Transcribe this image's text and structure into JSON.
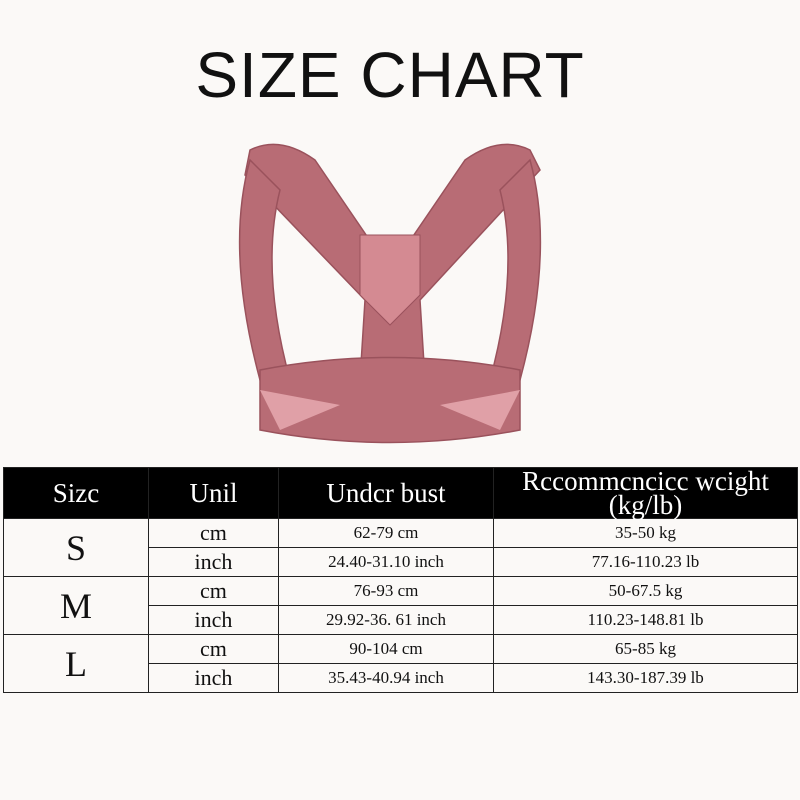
{
  "title": "SIZE CHART",
  "colors": {
    "brace": "#b86c75",
    "header_bg": "#000000"
  },
  "table": {
    "headers": [
      "Sizc",
      "Unil",
      "Undcr bust",
      "Rccommcncicc wcight (kg/lb)"
    ],
    "rows": [
      {
        "size": "S",
        "cm": {
          "unit": "cm",
          "bust": "62-79 cm",
          "weight": "35-50 kg"
        },
        "inch": {
          "unit": "inch",
          "bust": "24.40-31.10 inch",
          "weight": "77.16-110.23 lb"
        }
      },
      {
        "size": "M",
        "cm": {
          "unit": "cm",
          "bust": "76-93 cm",
          "weight": "50-67.5 kg"
        },
        "inch": {
          "unit": "inch",
          "bust": "29.92-36. 61 inch",
          "weight": "110.23-148.81 lb"
        }
      },
      {
        "size": "L",
        "cm": {
          "unit": "cm",
          "bust": "90-104 cm",
          "weight": "65-85 kg"
        },
        "inch": {
          "unit": "inch",
          "bust": "35.43-40.94 inch",
          "weight": "143.30-187.39 lb"
        }
      }
    ]
  }
}
